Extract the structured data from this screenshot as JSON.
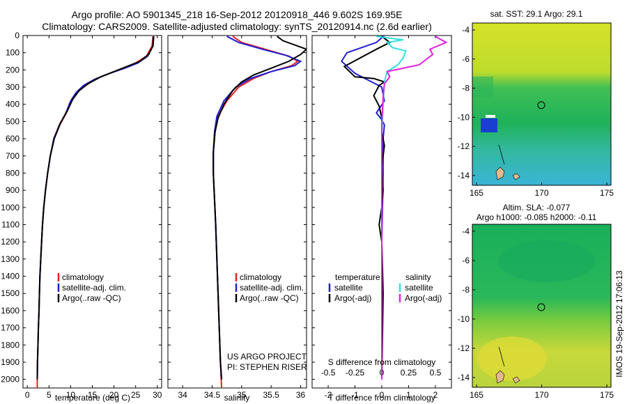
{
  "header": {
    "line1": "Argo profile: AO 5901345_218 16-Sep-2012 20120918_446 9.602S 169.95E",
    "line2": "Climatology: CARS2009. Satellite-adjusted climatology: synTS_20120914.nc (2.6d earlier)"
  },
  "side_stamp": "IMOS 19-Sep-2012 17:06:13",
  "colors": {
    "climatology": "#e8201c",
    "satellite_adj": "#1f1fd8",
    "argo": "#000000",
    "salinity_satellite": "#2ee0e0",
    "salinity_argo": "#e020e0"
  },
  "chart_data": [
    {
      "type": "line",
      "panel": "temperature",
      "xlabel": "temperature (deg C)",
      "xlim": [
        -1,
        31
      ],
      "ylim": [
        2050,
        0
      ],
      "yticks": [
        0,
        100,
        200,
        300,
        400,
        500,
        600,
        700,
        800,
        900,
        1000,
        1100,
        1200,
        1300,
        1400,
        1500,
        1600,
        1700,
        1800,
        1900,
        2000
      ],
      "xticks": [
        0,
        5,
        10,
        15,
        20,
        25,
        30
      ],
      "legend": {
        "placement": "center-bottom",
        "labels": [
          "climatology",
          "satellite-adj. clim.",
          "Argo(..raw -QC)"
        ]
      },
      "series": [
        {
          "name": "climatology",
          "color": "#e8201c",
          "points": [
            [
              29.0,
              5
            ],
            [
              28.8,
              60
            ],
            [
              27.5,
              120
            ],
            [
              25,
              160
            ],
            [
              22,
              190
            ],
            [
              19,
              220
            ],
            [
              16,
              250
            ],
            [
              13.5,
              290
            ],
            [
              11.5,
              330
            ],
            [
              10.2,
              380
            ],
            [
              9,
              450
            ],
            [
              7.5,
              520
            ],
            [
              6.2,
              600
            ],
            [
              5.3,
              700
            ],
            [
              4.7,
              800
            ],
            [
              4.2,
              900
            ],
            [
              3.8,
              1000
            ],
            [
              3.5,
              1100
            ],
            [
              3.3,
              1200
            ],
            [
              3.1,
              1300
            ],
            [
              2.9,
              1400
            ],
            [
              2.8,
              1500
            ],
            [
              2.7,
              1600
            ],
            [
              2.55,
              1700
            ],
            [
              2.45,
              1800
            ],
            [
              2.35,
              1900
            ],
            [
              2.3,
              2000
            ],
            [
              2.3,
              2050
            ]
          ]
        },
        {
          "name": "satellite-adj. clim.",
          "color": "#1f1fd8",
          "points": [
            [
              29.2,
              5
            ],
            [
              29.0,
              60
            ],
            [
              27.8,
              120
            ],
            [
              25.5,
              160
            ],
            [
              22.5,
              190
            ],
            [
              19,
              220
            ],
            [
              15.5,
              255
            ],
            [
              13,
              290
            ],
            [
              11.3,
              330
            ],
            [
              10,
              380
            ],
            [
              8.9,
              450
            ],
            [
              7.4,
              520
            ],
            [
              6.1,
              600
            ],
            [
              5.3,
              700
            ],
            [
              4.7,
              800
            ],
            [
              4.2,
              900
            ],
            [
              3.8,
              1000
            ],
            [
              3.5,
              1100
            ],
            [
              3.3,
              1200
            ],
            [
              3.1,
              1300
            ],
            [
              2.9,
              1400
            ],
            [
              2.8,
              1500
            ],
            [
              2.7,
              1600
            ],
            [
              2.55,
              1700
            ],
            [
              2.45,
              1800
            ],
            [
              2.35,
              1900
            ],
            [
              2.3,
              2000
            ]
          ]
        },
        {
          "name": "Argo(..raw -QC)",
          "color": "#000000",
          "points": [
            [
              29.1,
              5
            ],
            [
              29.0,
              60
            ],
            [
              28.0,
              110
            ],
            [
              26,
              150
            ],
            [
              23,
              180
            ],
            [
              20,
              210
            ],
            [
              17,
              240
            ],
            [
              14,
              280
            ],
            [
              12,
              320
            ],
            [
              10.5,
              370
            ],
            [
              9.2,
              440
            ],
            [
              7.6,
              510
            ],
            [
              6.2,
              600
            ],
            [
              5.3,
              700
            ],
            [
              4.7,
              800
            ],
            [
              4.2,
              900
            ],
            [
              3.8,
              1000
            ],
            [
              3.5,
              1100
            ],
            [
              3.3,
              1200
            ],
            [
              3.1,
              1300
            ],
            [
              2.9,
              1400
            ],
            [
              2.8,
              1500
            ],
            [
              2.7,
              1600
            ],
            [
              2.55,
              1700
            ],
            [
              2.45,
              1800
            ],
            [
              2.35,
              1900
            ],
            [
              2.3,
              2000
            ]
          ]
        }
      ]
    },
    {
      "type": "line",
      "panel": "salinity",
      "xlabel": "salinity",
      "xlim": [
        33.75,
        36.1
      ],
      "ylim": [
        2050,
        0
      ],
      "xticks": [
        34,
        34.5,
        35,
        35.5,
        36
      ],
      "legend": {
        "placement": "center-bottom",
        "labels": [
          "climatology",
          "satellite-adj. clim.",
          "Argo(..raw -QC)"
        ]
      },
      "annotation": [
        "US ARGO PROJECT",
        "PI: STEPHEN RISER"
      ],
      "series": [
        {
          "name": "climatology",
          "color": "#e8201c",
          "points": [
            [
              34.85,
              5
            ],
            [
              35.0,
              40
            ],
            [
              35.4,
              80
            ],
            [
              35.8,
              120
            ],
            [
              35.95,
              150
            ],
            [
              35.85,
              175
            ],
            [
              35.5,
              210
            ],
            [
              35.2,
              250
            ],
            [
              34.95,
              300
            ],
            [
              34.75,
              380
            ],
            [
              34.6,
              470
            ],
            [
              34.55,
              560
            ],
            [
              34.52,
              680
            ],
            [
              34.52,
              800
            ],
            [
              34.54,
              950
            ],
            [
              34.56,
              1100
            ],
            [
              34.58,
              1300
            ],
            [
              34.6,
              1500
            ],
            [
              34.62,
              1700
            ],
            [
              34.64,
              1900
            ],
            [
              34.66,
              2050
            ]
          ]
        },
        {
          "name": "satellite-adj. clim.",
          "color": "#1f1fd8",
          "points": [
            [
              34.75,
              5
            ],
            [
              34.95,
              40
            ],
            [
              35.35,
              80
            ],
            [
              35.75,
              115
            ],
            [
              36.0,
              150
            ],
            [
              35.9,
              175
            ],
            [
              35.5,
              210
            ],
            [
              35.15,
              250
            ],
            [
              34.9,
              300
            ],
            [
              34.7,
              380
            ],
            [
              34.58,
              470
            ],
            [
              34.54,
              560
            ],
            [
              34.52,
              680
            ],
            [
              34.52,
              800
            ],
            [
              34.54,
              950
            ],
            [
              34.56,
              1100
            ],
            [
              34.58,
              1300
            ],
            [
              34.6,
              1500
            ],
            [
              34.62,
              1700
            ],
            [
              34.64,
              1900
            ],
            [
              34.66,
              2000
            ]
          ]
        },
        {
          "name": "Argo(..raw -QC)",
          "color": "#000000",
          "points": [
            [
              35.6,
              5
            ],
            [
              35.7,
              30
            ],
            [
              36.1,
              80
            ],
            [
              36.0,
              110
            ],
            [
              35.8,
              150
            ],
            [
              35.5,
              190
            ],
            [
              35.2,
              230
            ],
            [
              35.0,
              270
            ],
            [
              34.85,
              320
            ],
            [
              34.7,
              400
            ],
            [
              34.6,
              480
            ],
            [
              34.55,
              560
            ],
            [
              34.52,
              680
            ],
            [
              34.52,
              800
            ],
            [
              34.54,
              950
            ],
            [
              34.56,
              1100
            ],
            [
              34.58,
              1300
            ],
            [
              34.6,
              1500
            ],
            [
              34.62,
              1700
            ],
            [
              34.64,
              1900
            ],
            [
              34.66,
              2000
            ]
          ]
        }
      ]
    },
    {
      "type": "line",
      "panel": "difference",
      "xlabel": "T difference from climatology",
      "xlabel2": "S difference from climatology",
      "xlim": [
        -2.6,
        2.6
      ],
      "ylim": [
        2050,
        0
      ],
      "xticks": [
        -2,
        -1,
        0,
        1,
        2
      ],
      "xticks2_labels": [
        "-0.5",
        "-0.25",
        "0",
        "0.25",
        "0.5"
      ],
      "legend_left": {
        "title": "temperature",
        "labels": [
          "satellite",
          "Argo(-adj)"
        ]
      },
      "legend_right": {
        "title": "salinity",
        "labels": [
          "satellite",
          "Argo(-adj)"
        ]
      },
      "series": [
        {
          "name": "temperature satellite",
          "color": "#1f1fd8",
          "points": [
            [
              0.1,
              0
            ],
            [
              -0.2,
              40
            ],
            [
              -1.3,
              100
            ],
            [
              -1.5,
              150
            ],
            [
              -1.0,
              220
            ],
            [
              0.0,
              300
            ],
            [
              0.1,
              380
            ],
            [
              -0.2,
              450
            ],
            [
              0.0,
              490
            ],
            [
              0.1,
              520
            ],
            [
              0.05,
              600
            ],
            [
              0.05,
              800
            ],
            [
              0.0,
              1200
            ],
            [
              0.0,
              1600
            ],
            [
              0.0,
              2000
            ]
          ]
        },
        {
          "name": "temperature Argo(-adj)",
          "color": "#000000",
          "points": [
            [
              0.0,
              5
            ],
            [
              0.3,
              40
            ],
            [
              -0.2,
              80
            ],
            [
              -1.4,
              180
            ],
            [
              -1.0,
              240
            ],
            [
              -0.3,
              250
            ],
            [
              0.1,
              270
            ],
            [
              -0.1,
              290
            ],
            [
              -0.3,
              350
            ],
            [
              -0.1,
              410
            ],
            [
              0.0,
              480
            ],
            [
              0.0,
              560
            ],
            [
              0.1,
              640
            ],
            [
              0.0,
              760
            ],
            [
              0.05,
              900
            ],
            [
              0.0,
              1000
            ],
            [
              -0.1,
              1100
            ],
            [
              0.0,
              1200
            ],
            [
              0.05,
              1500
            ],
            [
              0.0,
              2000
            ]
          ]
        },
        {
          "name": "salinity satellite",
          "color": "#2ee0e0",
          "points": [
            [
              -0.2,
              5
            ],
            [
              0.8,
              25
            ],
            [
              0.2,
              40
            ],
            [
              0.4,
              70
            ],
            [
              0.9,
              90
            ],
            [
              0.8,
              130
            ],
            [
              0.6,
              170
            ],
            [
              0.2,
              210
            ],
            [
              0.1,
              270
            ],
            [
              0.05,
              400
            ],
            [
              0.0,
              600
            ],
            [
              0.0,
              900
            ],
            [
              0.0,
              1200
            ],
            [
              0.0,
              1600
            ],
            [
              0.0,
              2000
            ]
          ]
        },
        {
          "name": "salinity Argo(-adj)",
          "color": "#e020e0",
          "points": [
            [
              2.0,
              5
            ],
            [
              2.4,
              40
            ],
            [
              1.8,
              80
            ],
            [
              1.9,
              110
            ],
            [
              1.4,
              170
            ],
            [
              0.8,
              190
            ],
            [
              0.2,
              210
            ],
            [
              0.3,
              240
            ],
            [
              0.1,
              280
            ],
            [
              0.05,
              360
            ],
            [
              0.0,
              500
            ],
            [
              0.0,
              800
            ],
            [
              0.0,
              1200
            ],
            [
              0.0,
              1600
            ],
            [
              0.0,
              2000
            ]
          ]
        }
      ]
    }
  ],
  "maps": [
    {
      "title1": "sat. SST: 29.1  Argo: 29.1",
      "title2": "",
      "xticks": [
        "165",
        "170",
        "175"
      ],
      "yticks": [
        "-4",
        "-6",
        "-8",
        "-10",
        "-12",
        "-14"
      ],
      "marker": {
        "lon": 169.95,
        "lat": -9.6
      }
    },
    {
      "title1": "Altim. SLA: -0.077",
      "title2": "Argo h1000: -0.085 h2000: -0.11",
      "xticks": [
        "165",
        "170",
        "175"
      ],
      "yticks": [
        "-4",
        "-6",
        "-8",
        "-10",
        "-12",
        "-14"
      ],
      "marker": {
        "lon": 169.95,
        "lat": -9.6
      }
    }
  ]
}
